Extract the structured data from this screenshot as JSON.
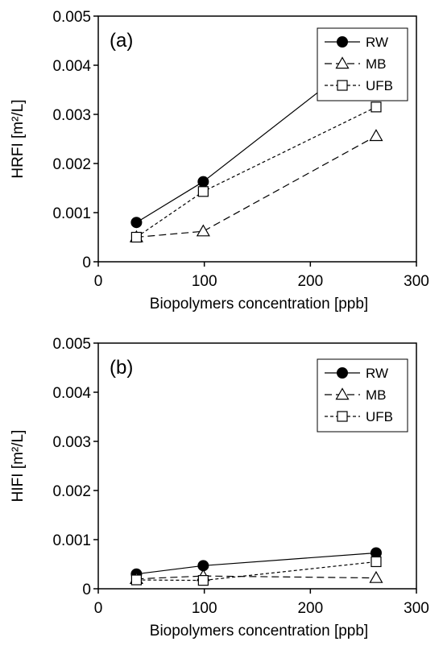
{
  "chart_data": [
    {
      "type": "line",
      "panel_label": "(a)",
      "xlabel": "Biopolymers concentration [ppb]",
      "ylabel": "HRFI [m²/L]",
      "xlim": [
        0,
        300
      ],
      "ylim": [
        0,
        0.005
      ],
      "x_ticks": [
        "0",
        "100",
        "200",
        "300"
      ],
      "y_ticks": [
        "0",
        "0.001",
        "0.002",
        "0.003",
        "0.004",
        "0.005"
      ],
      "legend_position": "top-right",
      "series": [
        {
          "name": "RW",
          "marker": "circle-filled",
          "line": "solid",
          "x": [
            36,
            99,
            262
          ],
          "y": [
            0.0008,
            0.00163,
            0.00437
          ]
        },
        {
          "name": "MB",
          "marker": "triangle-open",
          "line": "long-dash",
          "x": [
            36,
            99,
            262
          ],
          "y": [
            0.0005,
            0.00062,
            0.00256
          ]
        },
        {
          "name": "UFB",
          "marker": "square-open",
          "line": "short-dash",
          "x": [
            36,
            99,
            262
          ],
          "y": [
            0.0005,
            0.00143,
            0.00315
          ]
        }
      ]
    },
    {
      "type": "line",
      "panel_label": "(b)",
      "xlabel": "Biopolymers concentration [ppb]",
      "ylabel": "HIFI [m²/L]",
      "xlim": [
        0,
        300
      ],
      "ylim": [
        0,
        0.005
      ],
      "x_ticks": [
        "0",
        "100",
        "200",
        "300"
      ],
      "y_ticks": [
        "0",
        "0.001",
        "0.002",
        "0.003",
        "0.004",
        "0.005"
      ],
      "legend_position": "top-right",
      "series": [
        {
          "name": "RW",
          "marker": "circle-filled",
          "line": "solid",
          "x": [
            36,
            99,
            262
          ],
          "y": [
            0.0003,
            0.00047,
            0.00073
          ]
        },
        {
          "name": "MB",
          "marker": "triangle-open",
          "line": "long-dash",
          "x": [
            36,
            99,
            262
          ],
          "y": [
            0.0002,
            0.00026,
            0.00022
          ]
        },
        {
          "name": "UFB",
          "marker": "square-open",
          "line": "short-dash",
          "x": [
            36,
            99,
            262
          ],
          "y": [
            0.00018,
            0.00017,
            0.00055
          ]
        }
      ]
    }
  ]
}
